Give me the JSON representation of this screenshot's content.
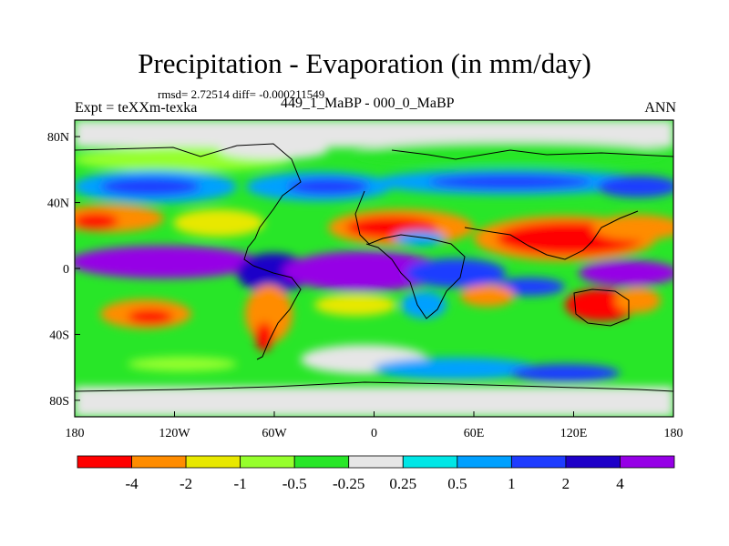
{
  "title": "Precipitation - Evaporation (in mm/day)",
  "stats": "rmsd= 2.72514  diff= -0.000211549",
  "experiment": "Expt = teXXm-texka",
  "case_label": "449_1_MaBP - 000_0_MaBP",
  "season": "ANN",
  "map": {
    "projection": "cylindrical-equidistant",
    "lon_range": [
      -180,
      180
    ],
    "lat_range": [
      -90,
      90
    ],
    "lon_ticks": [
      {
        "value": -180,
        "label": "180"
      },
      {
        "value": -120,
        "label": "120W"
      },
      {
        "value": -60,
        "label": "60W"
      },
      {
        "value": 0,
        "label": "0"
      },
      {
        "value": 60,
        "label": "60E"
      },
      {
        "value": 120,
        "label": "120E"
      },
      {
        "value": 180,
        "label": "180"
      }
    ],
    "lat_ticks": [
      {
        "value": 80,
        "label": "80N"
      },
      {
        "value": 40,
        "label": "40N"
      },
      {
        "value": 0,
        "label": "0"
      },
      {
        "value": -40,
        "label": "40S"
      },
      {
        "value": -80,
        "label": "80S"
      }
    ]
  },
  "colorbar": {
    "colors": [
      "#ff0000",
      "#ff8c00",
      "#e8e800",
      "#96ff2d",
      "#28e628",
      "#e6e6e6",
      "#00e6e6",
      "#00a0ff",
      "#1e3cff",
      "#1e00c8",
      "#9600e6"
    ],
    "labels": [
      "-4",
      "-2",
      "-1",
      "-0.5",
      "-0.25",
      "0.25",
      "0.5",
      "1",
      "2",
      "4"
    ]
  }
}
